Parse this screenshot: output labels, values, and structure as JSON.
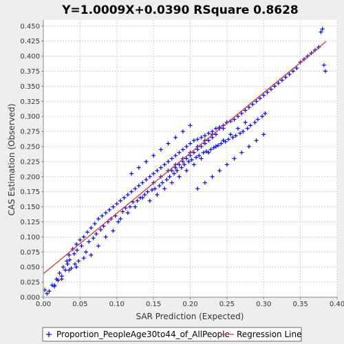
{
  "chart_data": {
    "type": "scatter",
    "title": "Y=1.0009X+0.0390    RSquare 0.8628",
    "xlabel": "SAR Prediction (Expected)",
    "ylabel": "CAS Estimation (Observed)",
    "xlim": [
      0.0,
      0.4
    ],
    "ylim": [
      0.0,
      0.46
    ],
    "x_ticks": [
      "0.00",
      "0.05",
      "0.10",
      "0.15",
      "0.20",
      "0.25",
      "0.30",
      "0.35",
      "0.40"
    ],
    "y_ticks": [
      "0.000",
      "0.025",
      "0.050",
      "0.075",
      "0.100",
      "0.125",
      "0.150",
      "0.175",
      "0.200",
      "0.225",
      "0.250",
      "0.275",
      "0.300",
      "0.325",
      "0.350",
      "0.375",
      "0.400",
      "0.425",
      "0.450"
    ],
    "grid": true,
    "legend_position": "bottom",
    "series": [
      {
        "name": "Proportion_PeopleAge30to44_of_AllPeople",
        "kind": "scatter",
        "marker": "plus",
        "color": "#0000FF",
        "x": [
          0.002,
          0.005,
          0.008,
          0.012,
          0.015,
          0.018,
          0.02,
          0.022,
          0.025,
          0.027,
          0.03,
          0.032,
          0.033,
          0.035,
          0.036,
          0.038,
          0.04,
          0.042,
          0.043,
          0.045,
          0.046,
          0.048,
          0.05,
          0.052,
          0.055,
          0.058,
          0.06,
          0.062,
          0.065,
          0.068,
          0.07,
          0.072,
          0.075,
          0.078,
          0.08,
          0.082,
          0.085,
          0.088,
          0.09,
          0.092,
          0.095,
          0.098,
          0.1,
          0.102,
          0.105,
          0.108,
          0.11,
          0.112,
          0.115,
          0.118,
          0.12,
          0.122,
          0.125,
          0.128,
          0.13,
          0.132,
          0.135,
          0.138,
          0.14,
          0.142,
          0.145,
          0.148,
          0.15,
          0.152,
          0.155,
          0.158,
          0.16,
          0.162,
          0.165,
          0.168,
          0.17,
          0.172,
          0.175,
          0.178,
          0.18,
          0.182,
          0.185,
          0.188,
          0.19,
          0.192,
          0.195,
          0.198,
          0.2,
          0.202,
          0.205,
          0.208,
          0.21,
          0.212,
          0.215,
          0.218,
          0.22,
          0.222,
          0.225,
          0.228,
          0.23,
          0.232,
          0.235,
          0.238,
          0.24,
          0.242,
          0.245,
          0.248,
          0.25,
          0.252,
          0.255,
          0.258,
          0.26,
          0.262,
          0.265,
          0.268,
          0.27,
          0.272,
          0.275,
          0.278,
          0.28,
          0.282,
          0.285,
          0.288,
          0.29,
          0.292,
          0.295,
          0.298,
          0.3,
          0.302,
          0.305,
          0.31,
          0.315,
          0.32,
          0.325,
          0.33,
          0.335,
          0.34,
          0.345,
          0.35,
          0.355,
          0.36,
          0.365,
          0.37,
          0.375,
          0.378,
          0.38,
          0.382,
          0.384,
          0.12,
          0.13,
          0.14,
          0.15,
          0.16,
          0.17,
          0.18,
          0.19,
          0.2,
          0.21,
          0.22,
          0.23,
          0.24,
          0.25,
          0.26,
          0.27,
          0.28,
          0.29,
          0.3,
          0.145,
          0.155,
          0.165,
          0.175,
          0.185,
          0.195,
          0.205,
          0.215,
          0.225,
          0.235,
          0.245,
          0.255,
          0.265,
          0.275,
          0.15,
          0.16,
          0.17,
          0.18,
          0.19,
          0.2,
          0.21,
          0.22,
          0.23,
          0.24,
          0.25,
          0.18,
          0.19,
          0.2,
          0.21,
          0.22,
          0.23,
          0.175,
          0.185,
          0.195,
          0.205,
          0.215,
          0.225,
          0.235,
          0.245,
          0.135,
          0.125,
          0.115,
          0.105,
          0.095,
          0.085,
          0.075,
          0.065,
          0.055,
          0.045,
          0.035,
          0.025,
          0.015
        ],
        "y": [
          0.012,
          0.006,
          0.01,
          0.02,
          0.018,
          0.03,
          0.028,
          0.04,
          0.035,
          0.05,
          0.045,
          0.06,
          0.055,
          0.07,
          0.062,
          0.048,
          0.08,
          0.072,
          0.055,
          0.088,
          0.078,
          0.06,
          0.095,
          0.085,
          0.1,
          0.075,
          0.108,
          0.092,
          0.115,
          0.098,
          0.122,
          0.105,
          0.13,
          0.112,
          0.135,
          0.118,
          0.14,
          0.125,
          0.145,
          0.13,
          0.15,
          0.135,
          0.155,
          0.125,
          0.16,
          0.142,
          0.165,
          0.148,
          0.17,
          0.15,
          0.175,
          0.158,
          0.18,
          0.16,
          0.185,
          0.165,
          0.19,
          0.17,
          0.195,
          0.175,
          0.2,
          0.178,
          0.205,
          0.18,
          0.21,
          0.185,
          0.215,
          0.19,
          0.22,
          0.195,
          0.225,
          0.2,
          0.23,
          0.205,
          0.235,
          0.21,
          0.24,
          0.215,
          0.245,
          0.22,
          0.25,
          0.225,
          0.255,
          0.228,
          0.26,
          0.232,
          0.262,
          0.235,
          0.265,
          0.24,
          0.268,
          0.242,
          0.272,
          0.245,
          0.275,
          0.248,
          0.28,
          0.252,
          0.282,
          0.255,
          0.285,
          0.258,
          0.29,
          0.262,
          0.292,
          0.265,
          0.295,
          0.268,
          0.3,
          0.272,
          0.305,
          0.275,
          0.31,
          0.28,
          0.315,
          0.285,
          0.32,
          0.29,
          0.325,
          0.295,
          0.33,
          0.3,
          0.335,
          0.305,
          0.34,
          0.345,
          0.35,
          0.355,
          0.36,
          0.365,
          0.37,
          0.375,
          0.38,
          0.39,
          0.395,
          0.4,
          0.405,
          0.41,
          0.415,
          0.44,
          0.445,
          0.385,
          0.375,
          0.205,
          0.215,
          0.225,
          0.235,
          0.245,
          0.255,
          0.265,
          0.275,
          0.285,
          0.18,
          0.19,
          0.2,
          0.21,
          0.22,
          0.23,
          0.24,
          0.25,
          0.26,
          0.27,
          0.16,
          0.17,
          0.18,
          0.19,
          0.2,
          0.21,
          0.22,
          0.23,
          0.24,
          0.25,
          0.26,
          0.27,
          0.28,
          0.29,
          0.19,
          0.2,
          0.21,
          0.22,
          0.23,
          0.24,
          0.25,
          0.26,
          0.27,
          0.28,
          0.29,
          0.215,
          0.225,
          0.235,
          0.245,
          0.255,
          0.265,
          0.21,
          0.22,
          0.23,
          0.24,
          0.25,
          0.26,
          0.27,
          0.28,
          0.165,
          0.15,
          0.14,
          0.13,
          0.11,
          0.1,
          0.085,
          0.07,
          0.065,
          0.05,
          0.045,
          0.03,
          0.02
        ]
      },
      {
        "name": "Regression Line",
        "kind": "line",
        "color": "#E03030",
        "x": [
          0.0,
          0.385
        ],
        "y": [
          0.039,
          0.4243
        ]
      }
    ]
  }
}
